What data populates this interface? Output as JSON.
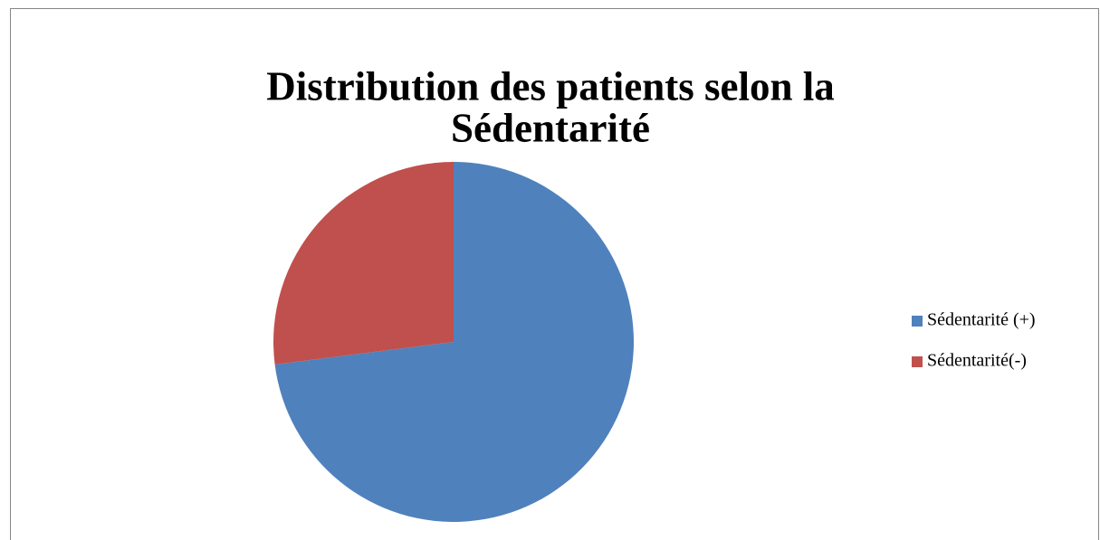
{
  "chart_data": {
    "type": "pie",
    "title": [
      "Distribution des patients selon la",
      "Sédentarité"
    ],
    "categories": [
      "Sédentarité (+)",
      "Sédentarité(-)"
    ],
    "values": [
      73,
      27
    ],
    "colors": [
      "#4f81bd",
      "#c0504d"
    ],
    "legend": "right"
  }
}
